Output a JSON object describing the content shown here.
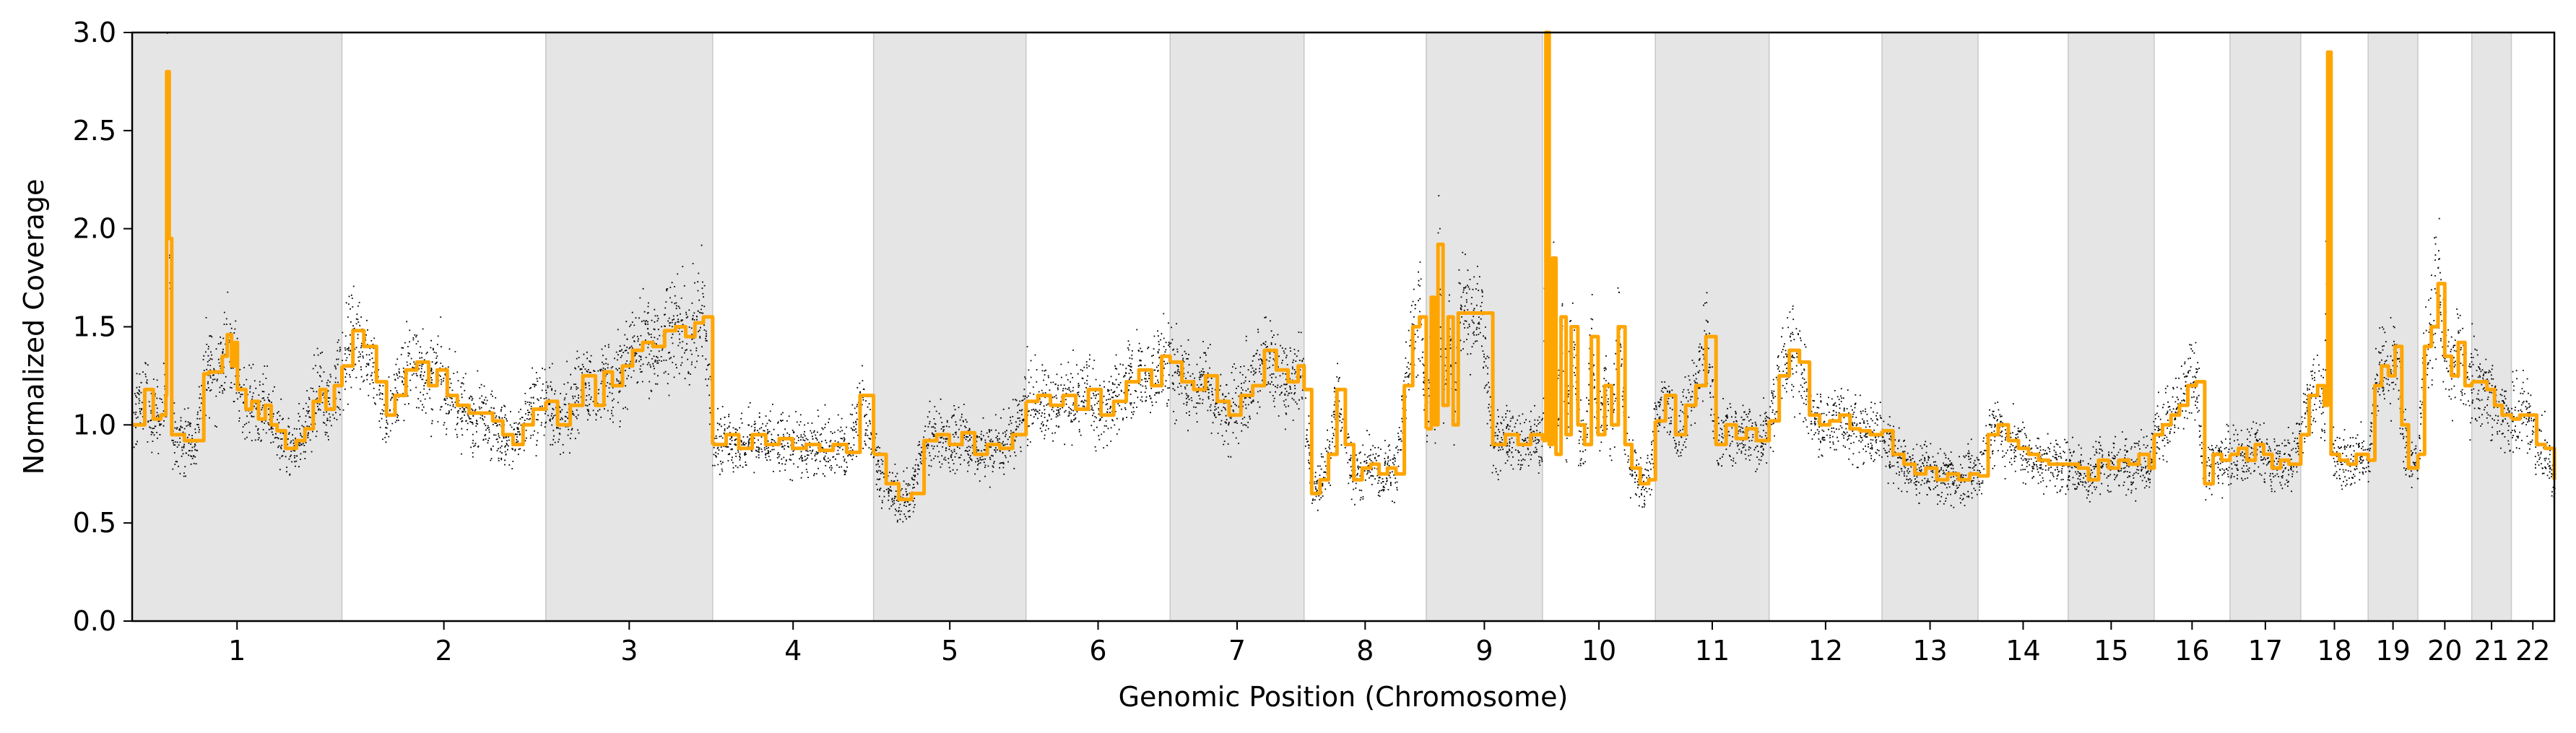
{
  "chart_data": {
    "type": "scatter",
    "xlabel": "Genomic Position (Chromosome)",
    "ylabel": "Normalized Coverage",
    "ylim": [
      0.0,
      3.0
    ],
    "yticks": [
      "0.0",
      "0.5",
      "1.0",
      "1.5",
      "2.0",
      "2.5",
      "3.0"
    ],
    "grid": false,
    "legend": "none",
    "shaded_alternate_chromosomes": true,
    "colors": {
      "points": "#000000",
      "segments": "#FFA500",
      "shade": "#E5E5E5"
    },
    "chromosomes": [
      {
        "label": "1",
        "x_start": 0,
        "x_end": 249
      },
      {
        "label": "2",
        "x_start": 249,
        "x_end": 491
      },
      {
        "label": "3",
        "x_start": 491,
        "x_end": 689
      },
      {
        "label": "4",
        "x_start": 689,
        "x_end": 880
      },
      {
        "label": "5",
        "x_start": 880,
        "x_end": 1061
      },
      {
        "label": "6",
        "x_start": 1061,
        "x_end": 1232
      },
      {
        "label": "7",
        "x_start": 1232,
        "x_end": 1391
      },
      {
        "label": "8",
        "x_start": 1391,
        "x_end": 1536
      },
      {
        "label": "9",
        "x_start": 1536,
        "x_end": 1674
      },
      {
        "label": "10",
        "x_start": 1674,
        "x_end": 1808
      },
      {
        "label": "11",
        "x_start": 1808,
        "x_end": 1943
      },
      {
        "label": "12",
        "x_start": 1943,
        "x_end": 2077
      },
      {
        "label": "13",
        "x_start": 2077,
        "x_end": 2191
      },
      {
        "label": "14",
        "x_start": 2191,
        "x_end": 2298
      },
      {
        "label": "15",
        "x_start": 2298,
        "x_end": 2400
      },
      {
        "label": "16",
        "x_start": 2400,
        "x_end": 2490
      },
      {
        "label": "17",
        "x_start": 2490,
        "x_end": 2574
      },
      {
        "label": "18",
        "x_start": 2574,
        "x_end": 2654
      },
      {
        "label": "19",
        "x_start": 2654,
        "x_end": 2713
      },
      {
        "label": "20",
        "x_start": 2713,
        "x_end": 2777
      },
      {
        "label": "21",
        "x_start": 2777,
        "x_end": 2824
      },
      {
        "label": "22",
        "x_start": 2824,
        "x_end": 2875
      }
    ],
    "segments": [
      {
        "x": [
          0,
          15,
          25,
          34,
          40,
          41,
          44,
          47,
          62,
          75,
          85,
          91,
          100,
          107,
          113,
          118,
          122,
          125,
          135,
          142,
          150,
          158,
          165,
          172,
          182,
          195,
          205,
          215,
          223,
          230,
          240,
          249
        ],
        "y": [
          1.0,
          1.18,
          1.03,
          1.05,
          1.15,
          2.8,
          1.95,
          0.95,
          0.92,
          0.92,
          1.26,
          1.27,
          1.27,
          1.35,
          1.46,
          1.3,
          1.42,
          1.18,
          1.08,
          1.12,
          1.03,
          1.1,
          1.0,
          0.97,
          0.88,
          0.92,
          0.98,
          1.12,
          1.18,
          1.08,
          1.2,
          1.3
        ]
      },
      {
        "x": [
          249,
          262,
          275,
          290,
          302,
          312,
          325,
          338,
          352,
          362,
          374,
          386,
          400,
          414,
          428,
          440,
          452,
          464,
          476,
          491
        ],
        "y": [
          1.3,
          1.48,
          1.4,
          1.22,
          1.05,
          1.15,
          1.28,
          1.32,
          1.2,
          1.28,
          1.15,
          1.1,
          1.06,
          1.06,
          1.02,
          0.95,
          0.9,
          1.0,
          1.08,
          1.12
        ]
      },
      {
        "x": [
          491,
          505,
          520,
          535,
          550,
          560,
          570,
          582,
          594,
          606,
          618,
          632,
          645,
          657,
          668,
          678,
          689
        ],
        "y": [
          1.12,
          1.0,
          1.1,
          1.25,
          1.1,
          1.27,
          1.2,
          1.3,
          1.38,
          1.42,
          1.4,
          1.48,
          1.5,
          1.45,
          1.52,
          1.55,
          0.9
        ]
      },
      {
        "x": [
          689,
          705,
          720,
          736,
          752,
          768,
          784,
          800,
          816,
          832,
          848,
          864,
          880
        ],
        "y": [
          0.9,
          0.95,
          0.88,
          0.95,
          0.9,
          0.93,
          0.88,
          0.9,
          0.87,
          0.9,
          0.86,
          1.15,
          0.85
        ]
      },
      {
        "x": [
          880,
          895,
          910,
          925,
          940,
          955,
          970,
          985,
          1000,
          1015,
          1030,
          1045,
          1061
        ],
        "y": [
          0.85,
          0.7,
          0.62,
          0.65,
          0.92,
          0.95,
          0.9,
          0.96,
          0.85,
          0.9,
          0.88,
          0.95,
          1.12
        ]
      },
      {
        "x": [
          1061,
          1075,
          1090,
          1105,
          1120,
          1135,
          1150,
          1165,
          1180,
          1195,
          1210,
          1222,
          1232
        ],
        "y": [
          1.12,
          1.15,
          1.1,
          1.15,
          1.08,
          1.18,
          1.05,
          1.12,
          1.22,
          1.28,
          1.2,
          1.35,
          1.32
        ]
      },
      {
        "x": [
          1232,
          1246,
          1260,
          1274,
          1288,
          1302,
          1316,
          1330,
          1344,
          1358,
          1372,
          1384,
          1391
        ],
        "y": [
          1.32,
          1.22,
          1.18,
          1.25,
          1.12,
          1.05,
          1.15,
          1.2,
          1.38,
          1.28,
          1.22,
          1.3,
          1.18
        ]
      },
      {
        "x": [
          1391,
          1400,
          1410,
          1420,
          1430,
          1440,
          1450,
          1460,
          1470,
          1480,
          1490,
          1500,
          1510,
          1520,
          1528,
          1536
        ],
        "y": [
          1.18,
          0.65,
          0.72,
          0.85,
          1.18,
          0.9,
          0.72,
          0.78,
          0.8,
          0.75,
          0.78,
          0.75,
          1.2,
          1.5,
          1.55,
          0.98
        ]
      },
      {
        "x": [
          1536,
          1542,
          1546,
          1550,
          1556,
          1562,
          1568,
          1574,
          1580,
          1590,
          1600,
          1615,
          1630,
          1645,
          1660,
          1674
        ],
        "y": [
          0.98,
          1.65,
          1.0,
          1.92,
          1.1,
          1.55,
          1.0,
          1.57,
          1.57,
          1.57,
          1.57,
          0.9,
          0.95,
          0.9,
          0.95,
          0.92
        ]
      },
      {
        "x": [
          1674,
          1678,
          1682,
          1686,
          1690,
          1696,
          1702,
          1708,
          1716,
          1724,
          1732,
          1740,
          1748,
          1756,
          1764,
          1772,
          1780,
          1790,
          1800,
          1808
        ],
        "y": [
          0.92,
          3.0,
          0.9,
          1.85,
          0.85,
          1.55,
          0.95,
          1.5,
          1.0,
          0.9,
          1.45,
          0.95,
          1.2,
          1.0,
          1.5,
          0.9,
          0.78,
          0.7,
          0.72,
          1.02
        ]
      },
      {
        "x": [
          1808,
          1820,
          1832,
          1844,
          1856,
          1868,
          1880,
          1892,
          1904,
          1916,
          1928,
          1943
        ],
        "y": [
          1.02,
          1.15,
          0.95,
          1.1,
          1.2,
          1.45,
          0.9,
          1.0,
          0.93,
          0.98,
          0.92,
          1.02
        ]
      },
      {
        "x": [
          1943,
          1955,
          1967,
          1979,
          1991,
          2003,
          2015,
          2027,
          2039,
          2051,
          2063,
          2077
        ],
        "y": [
          1.02,
          1.25,
          1.38,
          1.32,
          1.05,
          1.0,
          1.02,
          1.05,
          0.98,
          0.97,
          0.95,
          0.97
        ]
      },
      {
        "x": [
          2077,
          2090,
          2103,
          2116,
          2129,
          2142,
          2155,
          2168,
          2181,
          2191
        ],
        "y": [
          0.97,
          0.85,
          0.8,
          0.75,
          0.78,
          0.72,
          0.75,
          0.72,
          0.75,
          0.74
        ]
      },
      {
        "x": [
          2191,
          2203,
          2215,
          2227,
          2239,
          2251,
          2263,
          2275,
          2287,
          2298
        ],
        "y": [
          0.74,
          0.95,
          1.0,
          0.92,
          0.88,
          0.85,
          0.82,
          0.8,
          0.8,
          0.8
        ]
      },
      {
        "x": [
          2298,
          2310,
          2322,
          2334,
          2346,
          2358,
          2370,
          2382,
          2394,
          2400
        ],
        "y": [
          0.8,
          0.78,
          0.72,
          0.82,
          0.78,
          0.82,
          0.8,
          0.85,
          0.78,
          0.95
        ]
      },
      {
        "x": [
          2400,
          2410,
          2420,
          2430,
          2440,
          2450,
          2460,
          2470,
          2480,
          2490
        ],
        "y": [
          0.95,
          1.0,
          1.05,
          1.1,
          1.2,
          1.22,
          0.7,
          0.85,
          0.82,
          0.85
        ]
      },
      {
        "x": [
          2490,
          2500,
          2510,
          2520,
          2530,
          2540,
          2550,
          2560,
          2574
        ],
        "y": [
          0.85,
          0.88,
          0.82,
          0.9,
          0.85,
          0.78,
          0.82,
          0.8,
          0.95
        ]
      },
      {
        "x": [
          2574,
          2584,
          2594,
          2602,
          2606,
          2610,
          2620,
          2630,
          2640,
          2654
        ],
        "y": [
          0.95,
          1.15,
          1.2,
          1.1,
          2.9,
          0.85,
          0.82,
          0.8,
          0.85,
          0.82
        ]
      },
      {
        "x": [
          2654,
          2662,
          2670,
          2678,
          2686,
          2694,
          2702,
          2713
        ],
        "y": [
          0.82,
          1.2,
          1.3,
          1.25,
          1.4,
          1.0,
          0.78,
          0.85
        ]
      },
      {
        "x": [
          2713,
          2721,
          2729,
          2737,
          2745,
          2753,
          2761,
          2769,
          2777
        ],
        "y": [
          0.85,
          1.4,
          1.5,
          1.72,
          1.35,
          1.25,
          1.42,
          1.2,
          1.22
        ]
      },
      {
        "x": [
          2777,
          2786,
          2795,
          2804,
          2813,
          2824
        ],
        "y": [
          1.22,
          1.22,
          1.18,
          1.1,
          1.05,
          1.03
        ]
      },
      {
        "x": [
          2824,
          2834,
          2844,
          2854,
          2864,
          2875
        ],
        "y": [
          1.03,
          1.05,
          1.05,
          0.9,
          0.88,
          0.72
        ]
      }
    ]
  }
}
